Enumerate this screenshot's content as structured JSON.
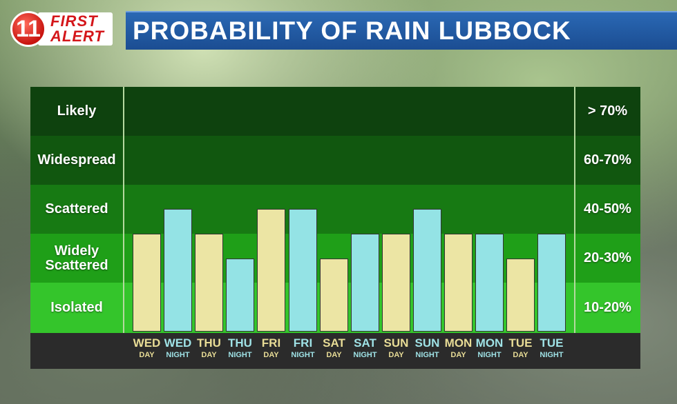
{
  "header": {
    "logo_number": "11",
    "logo_first": "FIRST",
    "logo_alert": "ALERT",
    "title": "PROBABILITY OF RAIN LUBBOCK"
  },
  "colors": {
    "day_bar": "#ece5a4",
    "night_bar": "#94e3e5",
    "day_text": "#e8dc96",
    "night_text": "#9fe2e6",
    "title_bar": "#1f5aa3"
  },
  "bands": [
    {
      "label": "Likely",
      "range": "> 70%",
      "color": "#0e420e"
    },
    {
      "label": "Widespread",
      "range": "60-70%",
      "color": "#11570f"
    },
    {
      "label": "Scattered",
      "range": "40-50%",
      "color": "#177a13"
    },
    {
      "label": "Widely\nScattered",
      "range": "20-30%",
      "color": "#1f9f18"
    },
    {
      "label": "Isolated",
      "range": "10-20%",
      "color": "#34c52b"
    }
  ],
  "chart_data": {
    "type": "bar",
    "title": "PROBABILITY OF RAIN LUBBOCK",
    "categories": [
      "WED DAY",
      "WED NIGHT",
      "THU DAY",
      "THU NIGHT",
      "FRI DAY",
      "FRI NIGHT",
      "SAT DAY",
      "SAT NIGHT",
      "SUN DAY",
      "SUN NIGHT",
      "MON DAY",
      "MON NIGHT",
      "TUE DAY",
      "TUE NIGHT"
    ],
    "days": [
      "WED",
      "WED",
      "THU",
      "THU",
      "FRI",
      "FRI",
      "SAT",
      "SAT",
      "SUN",
      "SUN",
      "MON",
      "MON",
      "TUE",
      "TUE"
    ],
    "periods": [
      "DAY",
      "NIGHT",
      "DAY",
      "NIGHT",
      "DAY",
      "NIGHT",
      "DAY",
      "NIGHT",
      "DAY",
      "NIGHT",
      "DAY",
      "NIGHT",
      "DAY",
      "NIGHT"
    ],
    "values": [
      30,
      40,
      30,
      20,
      40,
      40,
      20,
      30,
      30,
      40,
      30,
      30,
      20,
      30
    ],
    "ylim": [
      0,
      70
    ],
    "y_categories": [
      "Isolated",
      "Widely Scattered",
      "Scattered",
      "Widespread",
      "Likely"
    ],
    "xlabel": "",
    "ylabel": ""
  }
}
